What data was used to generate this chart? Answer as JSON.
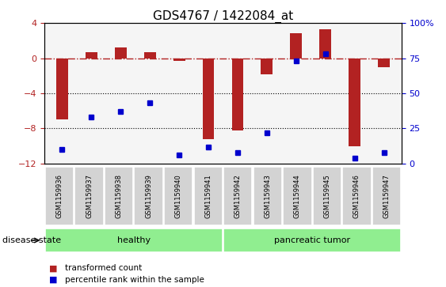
{
  "title": "GDS4767 / 1422084_at",
  "samples": [
    "GSM1159936",
    "GSM1159937",
    "GSM1159938",
    "GSM1159939",
    "GSM1159940",
    "GSM1159941",
    "GSM1159942",
    "GSM1159943",
    "GSM1159944",
    "GSM1159945",
    "GSM1159946",
    "GSM1159947"
  ],
  "transformed_count": [
    -7.0,
    0.7,
    1.2,
    0.7,
    -0.3,
    -9.2,
    -8.2,
    -1.8,
    2.8,
    3.3,
    -10.0,
    -1.0
  ],
  "percentile_rank": [
    10,
    33,
    37,
    43,
    6,
    12,
    8,
    22,
    73,
    78,
    4,
    8
  ],
  "ylim_left": [
    -12,
    4
  ],
  "ylim_right": [
    0,
    100
  ],
  "yticks_left": [
    -12,
    -8,
    -4,
    0,
    4
  ],
  "yticks_right": [
    0,
    25,
    50,
    75,
    100
  ],
  "dotted_lines": [
    -4,
    -8
  ],
  "groups": [
    {
      "label": "healthy",
      "start": 0,
      "end": 5,
      "color": "#90EE90"
    },
    {
      "label": "pancreatic tumor",
      "start": 6,
      "end": 11,
      "color": "#90EE90"
    }
  ],
  "bar_color": "#B22222",
  "dot_color": "#0000CD",
  "tick_box_color": "#d3d3d3",
  "legend_items": [
    {
      "label": "transformed count",
      "color": "#B22222"
    },
    {
      "label": "percentile rank within the sample",
      "color": "#0000CD"
    }
  ],
  "disease_state_label": "disease state",
  "title_fontsize": 11
}
